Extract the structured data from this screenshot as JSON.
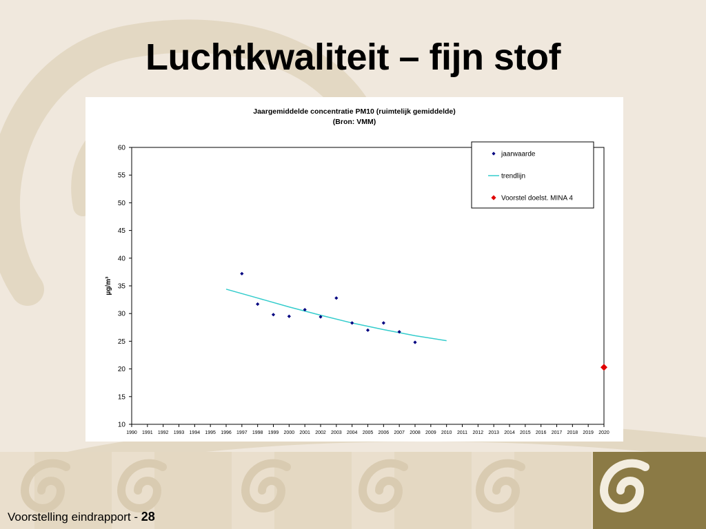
{
  "slide": {
    "title": "Luchtkwaliteit – fijn stof",
    "footer_label": "Voorstelling eindrapport - ",
    "page_number": "28"
  },
  "colors": {
    "background": "#f0e8dd",
    "decoration": "#e3d8c3",
    "decoration_dark": "#8b7a45",
    "points": "#000080",
    "trend": "#33cccc",
    "target": "#e00000"
  },
  "chart_data": {
    "type": "scatter",
    "title": "Jaargemiddelde concentratie PM10 (ruimtelijk gemiddelde)",
    "subtitle": "(Bron: VMM)",
    "xlabel": "",
    "ylabel": "µg/m³",
    "xlim": [
      1990,
      2020
    ],
    "ylim": [
      10,
      60
    ],
    "x_ticks": [
      "1990",
      "1991",
      "1992",
      "1993",
      "1994",
      "1995",
      "1996",
      "1997",
      "1998",
      "1999",
      "2000",
      "2001",
      "2002",
      "2003",
      "2004",
      "2005",
      "2006",
      "2007",
      "2008",
      "2009",
      "2010",
      "2011",
      "2012",
      "2013",
      "2014",
      "2015",
      "2016",
      "2017",
      "2018",
      "2019",
      "2020"
    ],
    "y_ticks": [
      10,
      15,
      20,
      25,
      30,
      35,
      40,
      45,
      50,
      55,
      60
    ],
    "grid": false,
    "legend_position": "top-right",
    "series": [
      {
        "name": "jaarwaarde",
        "kind": "points",
        "x": [
          1997,
          1998,
          1999,
          2000,
          2001,
          2002,
          2003,
          2004,
          2005,
          2006,
          2007,
          2008
        ],
        "y": [
          37.2,
          31.7,
          29.8,
          29.5,
          30.7,
          29.4,
          32.8,
          28.3,
          27.0,
          28.3,
          26.7,
          24.8
        ]
      },
      {
        "name": "trendlijn",
        "kind": "line",
        "x": [
          1996,
          1998,
          2000,
          2002,
          2004,
          2006,
          2008,
          2010
        ],
        "y": [
          34.4,
          32.8,
          31.2,
          29.7,
          28.3,
          27.1,
          26.0,
          25.1
        ]
      },
      {
        "name": "Voorstel doelst. MINA 4",
        "kind": "target",
        "x": [
          2020
        ],
        "y": [
          20.3
        ]
      }
    ]
  }
}
